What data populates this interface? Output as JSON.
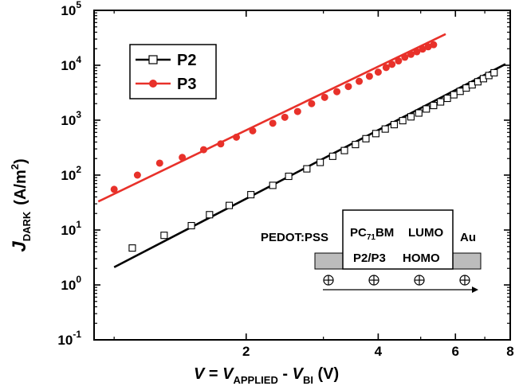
{
  "chart_data": {
    "type": "scatter",
    "scale": {
      "x": "log",
      "y": "log"
    },
    "xlim": [
      0.9,
      8
    ],
    "ylim": [
      0.1,
      100000
    ],
    "x_ticks": [
      {
        "value": 2,
        "label": "2"
      },
      {
        "value": 4,
        "label": "4"
      },
      {
        "value": 6,
        "label": "6"
      },
      {
        "value": 8,
        "label": "8"
      }
    ],
    "y_ticks": [
      {
        "value": 0.1,
        "base": "10",
        "exp": "-1"
      },
      {
        "value": 1,
        "base": "10",
        "exp": "0"
      },
      {
        "value": 10,
        "base": "10",
        "exp": "1"
      },
      {
        "value": 100,
        "base": "10",
        "exp": "2"
      },
      {
        "value": 1000,
        "base": "10",
        "exp": "3"
      },
      {
        "value": 10000,
        "base": "10",
        "exp": "4"
      },
      {
        "value": 100000,
        "base": "10",
        "exp": "5"
      }
    ],
    "xlabel": {
      "v1": "V",
      "eq": " = ",
      "v2": "V",
      "sub1": "APPLIED",
      "minus": " - ",
      "v3": "V",
      "sub2": "BI",
      "unit": " (V)"
    },
    "ylabel": {
      "j": "J",
      "sub": "DARK",
      "unit_pre": "(A/m",
      "unit_sup": "2",
      "unit_post": ")"
    },
    "legend_position": "top-left",
    "series": [
      {
        "name": "P2",
        "color": "#000000",
        "marker": "open-square",
        "points": [
          [
            1.1,
            4.7
          ],
          [
            1.3,
            8
          ],
          [
            1.5,
            12
          ],
          [
            1.65,
            19
          ],
          [
            1.83,
            28
          ],
          [
            2.05,
            44
          ],
          [
            2.3,
            65
          ],
          [
            2.5,
            95
          ],
          [
            2.75,
            130
          ],
          [
            2.95,
            170
          ],
          [
            3.15,
            220
          ],
          [
            3.35,
            280
          ],
          [
            3.55,
            360
          ],
          [
            3.75,
            460
          ],
          [
            3.95,
            570
          ],
          [
            4.15,
            690
          ],
          [
            4.35,
            830
          ],
          [
            4.55,
            980
          ],
          [
            4.75,
            1150
          ],
          [
            4.95,
            1350
          ],
          [
            5.15,
            1600
          ],
          [
            5.35,
            1850
          ],
          [
            5.55,
            2150
          ],
          [
            5.75,
            2500
          ],
          [
            5.95,
            2900
          ],
          [
            6.15,
            3350
          ],
          [
            6.35,
            3850
          ],
          [
            6.55,
            4400
          ],
          [
            6.75,
            5000
          ],
          [
            6.95,
            5700
          ],
          [
            7.15,
            6500
          ],
          [
            7.35,
            7300
          ]
        ],
        "fit": [
          [
            1.0,
            2.1
          ],
          [
            7.8,
            10500
          ]
        ]
      },
      {
        "name": "P3",
        "color": "#e8312a",
        "marker": "filled-circle",
        "points": [
          [
            1.0,
            55
          ],
          [
            1.13,
            100
          ],
          [
            1.27,
            165
          ],
          [
            1.43,
            210
          ],
          [
            1.6,
            290
          ],
          [
            1.75,
            370
          ],
          [
            1.9,
            490
          ],
          [
            2.07,
            640
          ],
          [
            2.3,
            880
          ],
          [
            2.45,
            1130
          ],
          [
            2.62,
            1440
          ],
          [
            2.82,
            2000
          ],
          [
            3.02,
            2600
          ],
          [
            3.22,
            3300
          ],
          [
            3.42,
            4100
          ],
          [
            3.62,
            5100
          ],
          [
            3.82,
            6300
          ],
          [
            4.0,
            7500
          ],
          [
            4.17,
            9100
          ],
          [
            4.3,
            10400
          ],
          [
            4.45,
            12000
          ],
          [
            4.6,
            14000
          ],
          [
            4.75,
            15800
          ],
          [
            4.9,
            17600
          ],
          [
            5.05,
            19700
          ],
          [
            5.2,
            21700
          ],
          [
            5.35,
            23700
          ]
        ],
        "fit": [
          [
            0.92,
            33
          ],
          [
            5.7,
            37000
          ]
        ]
      }
    ],
    "inset": {
      "labels": {
        "left": "PEDOT:PSS",
        "pcbm_main": "PC",
        "pcbm_sub": "71",
        "pcbm_end": "BM",
        "lumo": "LUMO",
        "p2p3": "P2/P3",
        "homo": "HOMO",
        "right": "Au"
      },
      "holes": 4
    }
  }
}
